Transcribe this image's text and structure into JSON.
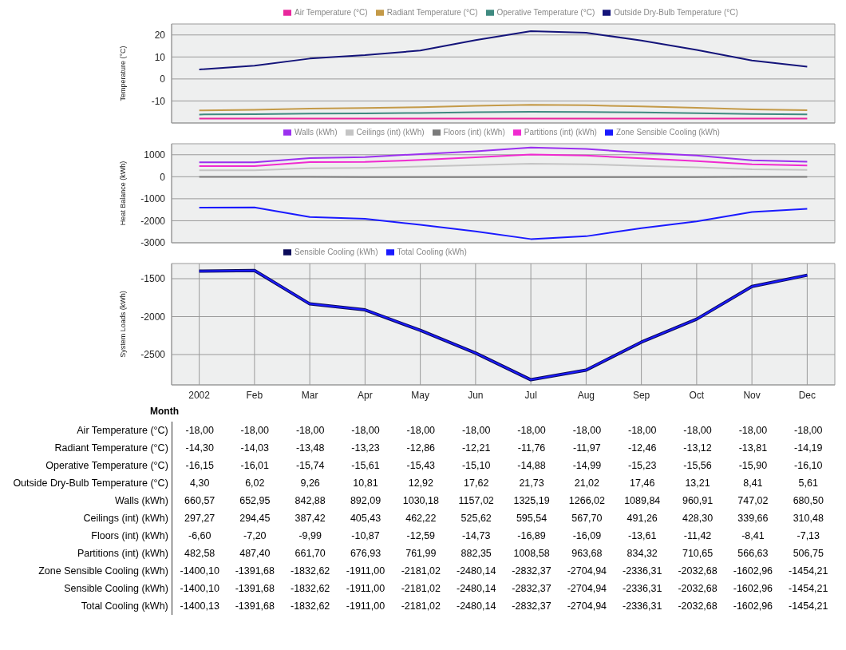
{
  "chart_data": [
    {
      "type": "line",
      "ylabel": "Temperature (°C)",
      "categories": [
        null,
        null,
        null,
        null,
        null,
        null,
        null,
        null,
        null,
        null,
        null,
        null
      ],
      "ylim": [
        -20,
        25
      ],
      "yticks": [
        -10,
        0,
        10,
        20
      ],
      "grid": true,
      "legend": "top",
      "marker": "none",
      "line_style": "solid",
      "tick_labels": "y",
      "series": [
        {
          "name": "Air Temperature (°C)",
          "color": "#e8279c",
          "values": [
            -18,
            -18,
            -18,
            -18,
            -18,
            -18,
            -18,
            -18,
            -18,
            -18,
            -18,
            -18
          ],
          "value_labels": [
            "-18,00",
            "-18,00",
            "-18,00",
            "-18,00",
            "-18,00",
            "-18,00",
            "-18,00",
            "-18,00",
            "-18,00",
            "-18,00",
            "-18,00",
            "-18,00"
          ]
        },
        {
          "name": "Radiant Temperature (°C)",
          "color": "#c49a48",
          "values": [
            -14.3,
            -14.03,
            -13.48,
            -13.23,
            -12.86,
            -12.21,
            -11.76,
            -11.97,
            -12.46,
            -13.12,
            -13.81,
            -14.19
          ],
          "value_labels": [
            "-14,30",
            "-14,03",
            "-13,48",
            "-13,23",
            "-12,86",
            "-12,21",
            "-11,76",
            "-11,97",
            "-12,46",
            "-13,12",
            "-13,81",
            "-14,19"
          ]
        },
        {
          "name": "Operative Temperature (°C)",
          "color": "#3f8a80",
          "values": [
            -16.15,
            -16.01,
            -15.74,
            -15.61,
            -15.43,
            -15.1,
            -14.88,
            -14.99,
            -15.23,
            -15.56,
            -15.9,
            -16.1
          ],
          "value_labels": [
            "-16,15",
            "-16,01",
            "-15,74",
            "-15,61",
            "-15,43",
            "-15,10",
            "-14,88",
            "-14,99",
            "-15,23",
            "-15,56",
            "-15,90",
            "-16,10"
          ]
        },
        {
          "name": "Outside Dry-Bulb Temperature (°C)",
          "color": "#14147a",
          "values": [
            4.3,
            6.02,
            9.26,
            10.81,
            12.92,
            17.62,
            21.73,
            21.02,
            17.46,
            13.21,
            8.41,
            5.61
          ],
          "value_labels": [
            "4,30",
            "6,02",
            "9,26",
            "10,81",
            "12,92",
            "17,62",
            "21,73",
            "21,02",
            "17,46",
            "13,21",
            "8,41",
            "5,61"
          ]
        }
      ]
    },
    {
      "type": "line",
      "ylabel": "Heat Balance (kWh)",
      "categories": [
        null,
        null,
        null,
        null,
        null,
        null,
        null,
        null,
        null,
        null,
        null,
        null
      ],
      "ylim": [
        -3000,
        1500
      ],
      "yticks": [
        -3000,
        -2000,
        -1000,
        0,
        1000
      ],
      "grid": true,
      "legend": "top",
      "marker": "none",
      "line_style": "solid",
      "tick_labels": "y",
      "series": [
        {
          "name": "Walls (kWh)",
          "color": "#9b30ef",
          "values": [
            660.57,
            652.95,
            842.88,
            892.09,
            1030.18,
            1157.02,
            1325.19,
            1266.02,
            1089.84,
            960.91,
            747.02,
            680.5
          ],
          "value_labels": [
            "660,57",
            "652,95",
            "842,88",
            "892,09",
            "1030,18",
            "1157,02",
            "1325,19",
            "1266,02",
            "1089,84",
            "960,91",
            "747,02",
            "680,50"
          ]
        },
        {
          "name": "Ceilings (int) (kWh)",
          "color": "#c4c4c4",
          "values": [
            297.27,
            294.45,
            387.42,
            405.43,
            462.22,
            525.62,
            595.54,
            567.7,
            491.26,
            428.3,
            339.66,
            310.48
          ],
          "value_labels": [
            "297,27",
            "294,45",
            "387,42",
            "405,43",
            "462,22",
            "525,62",
            "595,54",
            "567,70",
            "491,26",
            "428,30",
            "339,66",
            "310,48"
          ]
        },
        {
          "name": "Floors (int) (kWh)",
          "color": "#7a7a7a",
          "values": [
            -6.6,
            -7.2,
            -9.99,
            -10.87,
            -12.59,
            -14.73,
            -16.89,
            -16.09,
            -13.61,
            -11.42,
            -8.41,
            -7.13
          ],
          "value_labels": [
            "-6,60",
            "-7,20",
            "-9,99",
            "-10,87",
            "-12,59",
            "-14,73",
            "-16,89",
            "-16,09",
            "-13,61",
            "-11,42",
            "-8,41",
            "-7,13"
          ]
        },
        {
          "name": "Partitions (int) (kWh)",
          "color": "#f02ad0",
          "values": [
            482.58,
            487.4,
            661.7,
            676.93,
            761.99,
            882.35,
            1008.58,
            963.68,
            834.32,
            710.65,
            566.63,
            506.75
          ],
          "value_labels": [
            "482,58",
            "487,40",
            "661,70",
            "676,93",
            "761,99",
            "882,35",
            "1008,58",
            "963,68",
            "834,32",
            "710,65",
            "566,63",
            "506,75"
          ]
        },
        {
          "name": "Zone Sensible Cooling (kWh)",
          "color": "#1a1aff",
          "values": [
            -1400.1,
            -1391.68,
            -1832.62,
            -1911,
            -2181.02,
            -2480.14,
            -2832.37,
            -2704.94,
            -2336.31,
            -2032.68,
            -1602.96,
            -1454.21
          ],
          "value_labels": [
            "-1400,10",
            "-1391,68",
            "-1832,62",
            "-1911,00",
            "-2181,02",
            "-2480,14",
            "-2832,37",
            "-2704,94",
            "-2336,31",
            "-2032,68",
            "-1602,96",
            "-1454,21"
          ]
        }
      ]
    },
    {
      "type": "line",
      "ylabel": "System Loads (kWh)",
      "xlabel": "Month",
      "categories": [
        "2002",
        "Feb",
        "Mar",
        "Apr",
        "May",
        "Jun",
        "Jul",
        "Aug",
        "Sep",
        "Oct",
        "Nov",
        "Dec"
      ],
      "ylim": [
        -2900,
        -1300
      ],
      "yticks": [
        -2500,
        -2000,
        -1500
      ],
      "grid": true,
      "legend": "top",
      "marker": "none",
      "line_style": "solid",
      "series": [
        {
          "name": "Sensible Cooling (kWh)",
          "color": "#0b0b5a",
          "values": [
            -1400.1,
            -1391.68,
            -1832.62,
            -1911,
            -2181.02,
            -2480.14,
            -2832.37,
            -2704.94,
            -2336.31,
            -2032.68,
            -1602.96,
            -1454.21
          ],
          "value_labels": [
            "-1400,10",
            "-1391,68",
            "-1832,62",
            "-1911,00",
            "-2181,02",
            "-2480,14",
            "-2832,37",
            "-2704,94",
            "-2336,31",
            "-2032,68",
            "-1602,96",
            "-1454,21"
          ]
        },
        {
          "name": "Total Cooling (kWh)",
          "color": "#1a1aff",
          "values": [
            -1400.13,
            -1391.68,
            -1832.62,
            -1911,
            -2181.02,
            -2480.14,
            -2832.37,
            -2704.94,
            -2336.31,
            -2032.68,
            -1602.96,
            -1454.21
          ],
          "value_labels": [
            "-1400,13",
            "-1391,68",
            "-1832,62",
            "-1911,00",
            "-2181,02",
            "-2480,14",
            "-2832,37",
            "-2704,94",
            "-2336,31",
            "-2032,68",
            "-1602,96",
            "-1454,21"
          ]
        }
      ]
    }
  ]
}
